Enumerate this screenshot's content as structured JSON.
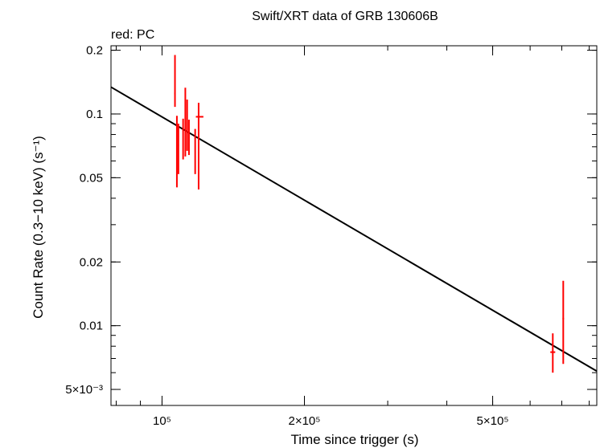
{
  "chart_data": {
    "type": "scatter",
    "title": "Swift/XRT data of GRB 130606B",
    "subtitle": "red: PC",
    "xlabel": "Time since trigger (s)",
    "ylabel": "Count Rate (0.3−10 keV) (s⁻¹)",
    "xscale": "log",
    "yscale": "log",
    "xlim": [
      78000,
      830000
    ],
    "ylim": [
      0.0042,
      0.21
    ],
    "x_ticks": [
      {
        "value": 100000,
        "label": "10⁵"
      },
      {
        "value": 200000,
        "label": "2×10⁵"
      },
      {
        "value": 500000,
        "label": "5×10⁵"
      }
    ],
    "y_ticks": [
      {
        "value": 0.2,
        "label": "0.2"
      },
      {
        "value": 0.1,
        "label": "0.1"
      },
      {
        "value": 0.05,
        "label": "0.05"
      },
      {
        "value": 0.02,
        "label": "0.02"
      },
      {
        "value": 0.01,
        "label": "0.01"
      },
      {
        "value": 0.005,
        "label": "5×10⁻³"
      }
    ],
    "grid": false,
    "series": [
      {
        "color": "#ff0000",
        "points": [
          {
            "x": 106500,
            "y": 0.125,
            "x_err": [
              400,
              400
            ],
            "y_lo": 0.108,
            "y_hi": 0.19
          },
          {
            "x": 107500,
            "y": 0.083,
            "x_err": [
              300,
              300
            ],
            "y_lo": 0.045,
            "y_hi": 0.098
          },
          {
            "x": 108300,
            "y": 0.071,
            "x_err": [
              300,
              300
            ],
            "y_lo": 0.052,
            "y_hi": 0.09
          },
          {
            "x": 110800,
            "y": 0.083,
            "x_err": [
              300,
              300
            ],
            "y_lo": 0.061,
            "y_hi": 0.095
          },
          {
            "x": 112000,
            "y": 0.095,
            "x_err": [
              300,
              300
            ],
            "y_lo": 0.063,
            "y_hi": 0.133
          },
          {
            "x": 113000,
            "y": 0.088,
            "x_err": [
              300,
              300
            ],
            "y_lo": 0.067,
            "y_hi": 0.117
          },
          {
            "x": 114000,
            "y": 0.075,
            "x_err": [
              300,
              300
            ],
            "y_lo": 0.064,
            "y_hi": 0.094
          },
          {
            "x": 117500,
            "y": 0.064,
            "x_err": [
              300,
              300
            ],
            "y_lo": 0.052,
            "y_hi": 0.085
          },
          {
            "x": 119500,
            "y": 0.097,
            "x_err": [
              1600,
              2800
            ],
            "y_lo": 0.044,
            "y_hi": 0.113
          },
          {
            "x": 670000,
            "y": 0.0075,
            "x_err": [
              8000,
              8000
            ],
            "y_lo": 0.006,
            "y_hi": 0.0092
          },
          {
            "x": 705000,
            "y": 0.0108,
            "x_err": [
              2500,
              2500
            ],
            "y_lo": 0.0066,
            "y_hi": 0.0163
          }
        ]
      }
    ],
    "fit_line": {
      "color": "#000000",
      "points": [
        [
          78000,
          0.134
        ],
        [
          830000,
          0.0061
        ]
      ]
    }
  }
}
